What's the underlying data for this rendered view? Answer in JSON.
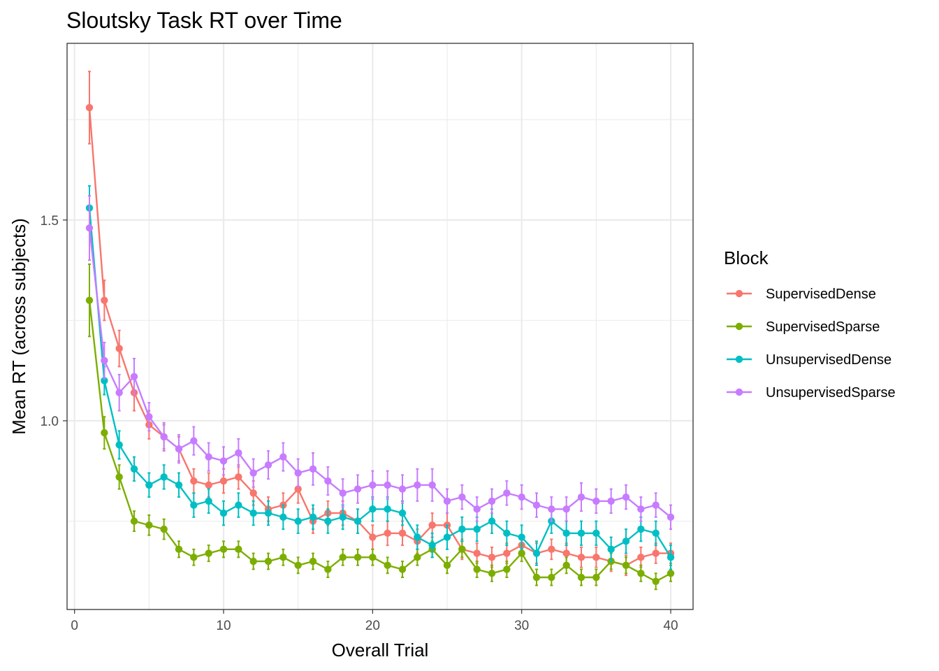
{
  "chart_data": {
    "type": "line",
    "title": "Sloutsky Task RT over Time",
    "xlabel": "Overall Trial",
    "ylabel": "Mean RT (across subjects)",
    "xlim": [
      -0.5,
      41.5
    ],
    "ylim": [
      0.53,
      1.94
    ],
    "x_ticks": [
      0,
      10,
      20,
      30,
      40
    ],
    "y_ticks": [
      1.0,
      1.5
    ],
    "y_tick_labels": [
      "1.0",
      "1.5"
    ],
    "grid": true,
    "legend": {
      "title": "Block",
      "position": "right"
    },
    "x": [
      1,
      2,
      3,
      4,
      5,
      6,
      7,
      8,
      9,
      10,
      11,
      12,
      13,
      14,
      15,
      16,
      17,
      18,
      19,
      20,
      21,
      22,
      23,
      24,
      25,
      26,
      27,
      28,
      29,
      30,
      31,
      32,
      33,
      34,
      35,
      36,
      37,
      38,
      39,
      40
    ],
    "series": [
      {
        "name": "SupervisedDense",
        "color": "#F8766D",
        "values": [
          1.78,
          1.3,
          1.18,
          1.07,
          0.99,
          0.96,
          0.93,
          0.85,
          0.84,
          0.85,
          0.86,
          0.82,
          0.78,
          0.79,
          0.83,
          0.75,
          0.77,
          0.77,
          0.75,
          0.71,
          0.72,
          0.72,
          0.7,
          0.74,
          0.74,
          0.68,
          0.67,
          0.66,
          0.67,
          0.69,
          0.67,
          0.68,
          0.67,
          0.66,
          0.66,
          0.65,
          0.64,
          0.66,
          0.67,
          0.67
        ],
        "err": [
          0.09,
          0.05,
          0.045,
          0.045,
          0.035,
          0.03,
          0.03,
          0.03,
          0.03,
          0.03,
          0.03,
          0.03,
          0.03,
          0.03,
          0.035,
          0.03,
          0.03,
          0.03,
          0.03,
          0.03,
          0.03,
          0.03,
          0.03,
          0.03,
          0.03,
          0.025,
          0.025,
          0.025,
          0.025,
          0.025,
          0.025,
          0.025,
          0.025,
          0.025,
          0.025,
          0.025,
          0.025,
          0.025,
          0.025,
          0.025
        ]
      },
      {
        "name": "SupervisedSparse",
        "color": "#7CAE00",
        "values": [
          1.3,
          0.97,
          0.86,
          0.75,
          0.74,
          0.73,
          0.68,
          0.66,
          0.67,
          0.68,
          0.68,
          0.65,
          0.65,
          0.66,
          0.64,
          0.65,
          0.63,
          0.66,
          0.66,
          0.66,
          0.64,
          0.63,
          0.66,
          0.68,
          0.64,
          0.68,
          0.63,
          0.62,
          0.63,
          0.67,
          0.61,
          0.61,
          0.64,
          0.61,
          0.61,
          0.65,
          0.64,
          0.62,
          0.6,
          0.62
        ],
        "err": [
          0.09,
          0.04,
          0.03,
          0.025,
          0.025,
          0.025,
          0.02,
          0.02,
          0.02,
          0.02,
          0.02,
          0.02,
          0.02,
          0.02,
          0.02,
          0.02,
          0.02,
          0.02,
          0.02,
          0.02,
          0.02,
          0.02,
          0.02,
          0.02,
          0.02,
          0.02,
          0.02,
          0.02,
          0.02,
          0.02,
          0.02,
          0.02,
          0.02,
          0.02,
          0.02,
          0.02,
          0.02,
          0.02,
          0.02,
          0.02
        ]
      },
      {
        "name": "UnsupervisedDense",
        "color": "#00BFC4",
        "values": [
          1.53,
          1.1,
          0.94,
          0.88,
          0.84,
          0.86,
          0.84,
          0.79,
          0.8,
          0.77,
          0.79,
          0.77,
          0.77,
          0.76,
          0.75,
          0.76,
          0.75,
          0.76,
          0.75,
          0.78,
          0.78,
          0.77,
          0.71,
          0.69,
          0.71,
          0.73,
          0.73,
          0.75,
          0.72,
          0.71,
          0.67,
          0.75,
          0.72,
          0.72,
          0.72,
          0.68,
          0.7,
          0.73,
          0.72,
          0.66
        ],
        "err": [
          0.055,
          0.035,
          0.035,
          0.03,
          0.03,
          0.03,
          0.03,
          0.03,
          0.03,
          0.03,
          0.03,
          0.03,
          0.03,
          0.03,
          0.03,
          0.03,
          0.03,
          0.03,
          0.03,
          0.03,
          0.03,
          0.03,
          0.03,
          0.03,
          0.03,
          0.03,
          0.03,
          0.03,
          0.03,
          0.03,
          0.03,
          0.03,
          0.03,
          0.03,
          0.03,
          0.03,
          0.03,
          0.03,
          0.03,
          0.03
        ]
      },
      {
        "name": "UnsupervisedSparse",
        "color": "#C77CFF",
        "values": [
          1.48,
          1.15,
          1.07,
          1.11,
          1.01,
          0.96,
          0.93,
          0.95,
          0.91,
          0.9,
          0.92,
          0.87,
          0.89,
          0.91,
          0.87,
          0.88,
          0.85,
          0.82,
          0.83,
          0.84,
          0.84,
          0.83,
          0.84,
          0.84,
          0.8,
          0.81,
          0.78,
          0.8,
          0.82,
          0.81,
          0.79,
          0.78,
          0.78,
          0.81,
          0.8,
          0.8,
          0.81,
          0.78,
          0.79,
          0.76
        ],
        "err": [
          0.08,
          0.045,
          0.045,
          0.045,
          0.035,
          0.035,
          0.035,
          0.035,
          0.035,
          0.035,
          0.035,
          0.035,
          0.035,
          0.035,
          0.035,
          0.04,
          0.035,
          0.035,
          0.035,
          0.035,
          0.035,
          0.035,
          0.04,
          0.04,
          0.03,
          0.03,
          0.03,
          0.03,
          0.03,
          0.03,
          0.03,
          0.03,
          0.03,
          0.035,
          0.03,
          0.03,
          0.03,
          0.03,
          0.03,
          0.03
        ]
      }
    ]
  }
}
